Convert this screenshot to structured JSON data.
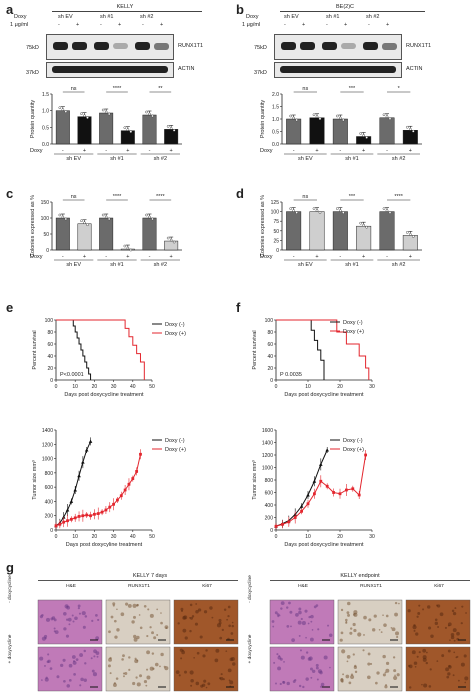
{
  "panels": {
    "a": {
      "letter": "a",
      "cell_line": "KELLY",
      "doxy_label": "Doxy",
      "dose_label": "1 μg/ml",
      "groups": [
        "sh EV",
        "sh #1",
        "sh #2"
      ],
      "signs": [
        "-",
        "+",
        "-",
        "+",
        "-",
        "+"
      ],
      "mw_top": "75kD",
      "mw_bottom": "37kD",
      "protein_top": "RUNX1T1",
      "protein_bottom": "ACTIN",
      "ylabel": "Protein quantity",
      "sig": [
        "ns",
        "****",
        "**"
      ]
    },
    "b": {
      "letter": "b",
      "cell_line": "BE(2)C",
      "doxy_label": "Doxy",
      "dose_label": "1 μg/ml",
      "groups": [
        "sh EV",
        "sh #1",
        "sh #2"
      ],
      "signs": [
        "-",
        "+",
        "-",
        "+",
        "-",
        "+"
      ],
      "mw_top": "75kD",
      "mw_bottom": "37kD",
      "protein_top": "RUNX1T1",
      "protein_bottom": "ACTIN",
      "ylabel": "Protein quantity",
      "sig": [
        "ns",
        "***",
        "*"
      ]
    },
    "c": {
      "letter": "c",
      "ylabel": "Colonies expressed as %",
      "sig": [
        "ns",
        "****",
        "****"
      ]
    },
    "d": {
      "letter": "d",
      "ylabel": "Colonies expressed as %",
      "sig": [
        "ns",
        "***",
        "****"
      ]
    },
    "e": {
      "letter": "e",
      "pvalue": "P<0.0001",
      "surv_ylabel": "Percent survival",
      "xlabel_surv": "Days post doxycycline treatment",
      "tumor_ylabel": "Tumor size mm³",
      "xlabel_tumor": "Days post doxycyline treatment"
    },
    "f": {
      "letter": "f",
      "pvalue": "P 0.0035",
      "surv_ylabel": "Percent survival",
      "xlabel_surv": "Days post doxycycline treatment",
      "tumor_ylabel": "Tumor size mm³",
      "xlabel_tumor": "Days post doxycycline treatment"
    },
    "g": {
      "letter": "g",
      "title_left": "KELLY 7 days",
      "title_right": "KELLY endpoint",
      "columns": [
        "H&E",
        "RUNX1T1",
        "Ki67"
      ],
      "rows": [
        "- doxycycline",
        "+ doxycycline"
      ]
    }
  },
  "legend": {
    "minus": "Doxy (-)",
    "plus": "Doxy (+)"
  },
  "colors": {
    "minus": "#111111",
    "plus": "#e3262e",
    "bar_dark": "#6b6b6b",
    "bar_black": "#111111",
    "bar_light": "#cfcfcf",
    "he": "#c07ab8",
    "ihc_bg": "#d8cfc2",
    "ki67": "#a0572a"
  },
  "chart_data": [
    {
      "id": "a-bar",
      "type": "bar",
      "categories": [
        "sh EV -",
        "sh EV +",
        "sh #1 -",
        "sh #1 +",
        "sh #2 -",
        "sh #2 +"
      ],
      "values": [
        1.0,
        0.82,
        0.93,
        0.4,
        0.87,
        0.44
      ],
      "ylabel": "Protein quantity",
      "ylim": [
        0,
        1.5
      ],
      "yticks": [
        "0.0",
        "0.5",
        "1.0",
        "1.5"
      ]
    },
    {
      "id": "b-bar",
      "type": "bar",
      "categories": [
        "sh EV -",
        "sh EV +",
        "sh #1 -",
        "sh #1 +",
        "sh #2 -",
        "sh #2 +"
      ],
      "values": [
        1.0,
        1.05,
        1.0,
        0.3,
        1.05,
        0.55
      ],
      "ylabel": "Protein quantity",
      "ylim": [
        0,
        2.0
      ],
      "yticks": [
        "0.0",
        "0.5",
        "1.0",
        "1.5",
        "2.0"
      ]
    },
    {
      "id": "c-bar",
      "type": "bar",
      "categories": [
        "sh EV -",
        "sh EV +",
        "sh #1 -",
        "sh #1 +",
        "sh #2 -",
        "sh #2 +"
      ],
      "values": [
        100,
        82,
        100,
        3,
        100,
        28
      ],
      "ylabel": "Colonies expressed as %",
      "ylim": [
        0,
        150
      ],
      "yticks": [
        "0",
        "50",
        "100",
        "150"
      ]
    },
    {
      "id": "d-bar",
      "type": "bar",
      "categories": [
        "sh EV -",
        "sh EV +",
        "sh #1 -",
        "sh #1 +",
        "sh #2 -",
        "sh #2 +"
      ],
      "values": [
        100,
        100,
        100,
        62,
        100,
        38
      ],
      "ylabel": "Colonies expressed as %",
      "ylim": [
        0,
        125
      ],
      "yticks": [
        "0",
        "25",
        "50",
        "75",
        "100",
        "125"
      ]
    },
    {
      "id": "e-surv",
      "type": "line",
      "ylabel": "Percent survival",
      "xlabel": "Days post doxycycline treatment",
      "xlim": [
        0,
        50
      ],
      "ylim": [
        0,
        100
      ],
      "xticks": [
        "0",
        "10",
        "20",
        "30",
        "40",
        "50"
      ],
      "yticks": [
        "0",
        "20",
        "40",
        "60",
        "80",
        "100"
      ],
      "series": [
        {
          "name": "Doxy (-)",
          "x": [
            0,
            8,
            9,
            10,
            11,
            12,
            13,
            14,
            15,
            16,
            17,
            18
          ],
          "y": [
            100,
            100,
            90,
            80,
            70,
            60,
            50,
            40,
            30,
            20,
            10,
            0
          ]
        },
        {
          "name": "Doxy (+)",
          "x": [
            0,
            26,
            36,
            38,
            40,
            42,
            44,
            46
          ],
          "y": [
            100,
            100,
            86,
            72,
            58,
            44,
            30,
            0
          ]
        }
      ]
    },
    {
      "id": "f-surv",
      "type": "line",
      "ylabel": "Percent survival",
      "xlabel": "Days post doxycycline treatment",
      "xlim": [
        0,
        30
      ],
      "ylim": [
        0,
        100
      ],
      "xticks": [
        "0",
        "10",
        "20",
        "30"
      ],
      "yticks": [
        "0",
        "20",
        "40",
        "60",
        "80",
        "100"
      ],
      "series": [
        {
          "name": "Doxy (-)",
          "x": [
            0,
            10,
            11,
            12,
            13,
            14,
            15
          ],
          "y": [
            100,
            100,
            83,
            66,
            50,
            33,
            0
          ]
        },
        {
          "name": "Doxy (+)",
          "x": [
            0,
            17,
            19,
            22,
            26,
            28,
            29
          ],
          "y": [
            100,
            100,
            80,
            60,
            40,
            20,
            0
          ]
        }
      ]
    },
    {
      "id": "e-tumor",
      "type": "line",
      "ylabel": "Tumor size mm³",
      "xlabel": "Days post doxycyline treatment",
      "xlim": [
        0,
        50
      ],
      "ylim": [
        0,
        1400
      ],
      "xticks": [
        "0",
        "10",
        "20",
        "30",
        "40",
        "50"
      ],
      "yticks": [
        "0",
        "200",
        "400",
        "600",
        "800",
        "1000",
        "1200",
        "1400"
      ],
      "series": [
        {
          "name": "Doxy (-)",
          "x": [
            0,
            2,
            4,
            6,
            8,
            10,
            12,
            14,
            16,
            18
          ],
          "y": [
            60,
            100,
            180,
            280,
            400,
            560,
            760,
            950,
            1120,
            1240
          ]
        },
        {
          "name": "Doxy (+)",
          "x": [
            0,
            2,
            4,
            6,
            8,
            10,
            12,
            14,
            16,
            18,
            20,
            22,
            24,
            26,
            28,
            30,
            32,
            34,
            36,
            38,
            40,
            42,
            44
          ],
          "y": [
            60,
            80,
            110,
            130,
            150,
            170,
            190,
            200,
            210,
            200,
            220,
            230,
            250,
            280,
            320,
            360,
            420,
            480,
            560,
            640,
            720,
            820,
            1060
          ]
        }
      ]
    },
    {
      "id": "f-tumor",
      "type": "line",
      "ylabel": "Tumor size mm³",
      "xlabel": "Days post doxycycline treatment",
      "xlim": [
        0,
        30
      ],
      "ylim": [
        0,
        1600
      ],
      "xticks": [
        "0",
        "10",
        "20",
        "30"
      ],
      "yticks": [
        "0",
        "200",
        "400",
        "600",
        "800",
        "1000",
        "1200",
        "1400",
        "1600"
      ],
      "series": [
        {
          "name": "Doxy (-)",
          "x": [
            0,
            2,
            4,
            6,
            8,
            10,
            12,
            14,
            16
          ],
          "y": [
            60,
            100,
            150,
            250,
            380,
            560,
            780,
            1050,
            1280
          ]
        },
        {
          "name": "Doxy (+)",
          "x": [
            0,
            2,
            4,
            6,
            8,
            10,
            12,
            14,
            16,
            18,
            20,
            22,
            24,
            26,
            28
          ],
          "y": [
            60,
            90,
            130,
            200,
            300,
            420,
            580,
            780,
            700,
            600,
            580,
            640,
            660,
            560,
            1200
          ]
        }
      ]
    }
  ]
}
